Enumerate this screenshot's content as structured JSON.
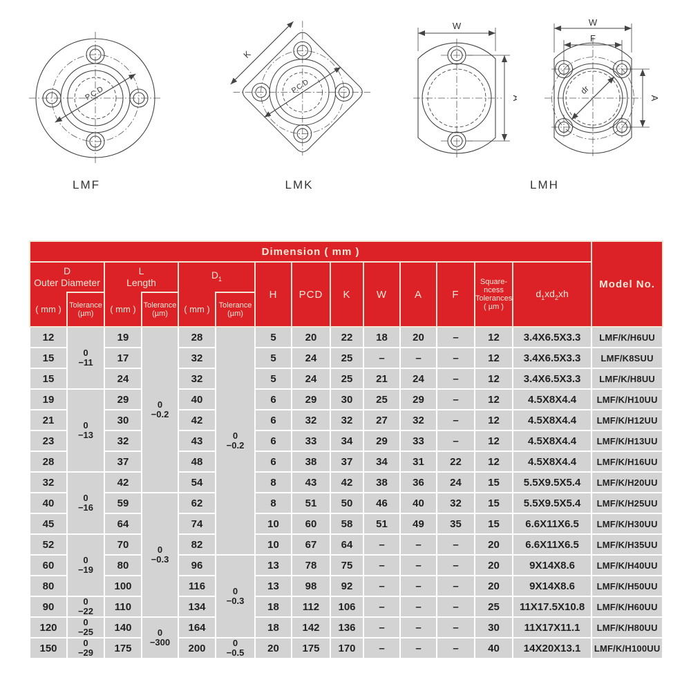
{
  "colors": {
    "header_red": "#dc2127",
    "header_text": "#f6ead8",
    "row_gray": "#d3d3d3",
    "grid_white": "#ffffff",
    "body_text": "#222222",
    "drawing_line": "#444444"
  },
  "diagrams": {
    "lmf": {
      "label": "LMF",
      "pcd_label": "P.C.D"
    },
    "lmk": {
      "label": "LMK",
      "pcd_label": "P.C.D",
      "k_label": "K"
    },
    "lmh": {
      "label": "LMH",
      "left": {
        "w": "W",
        "a": "A"
      },
      "right": {
        "w": "W",
        "f": "F",
        "a": "A",
        "dr": "dr"
      }
    }
  },
  "table": {
    "title": "Dimension ( mm )",
    "model_header": "Model No.",
    "header": {
      "d": {
        "line1": "D",
        "line2": "Outer Diameter",
        "unit": "( mm )",
        "tol1": "Tolerance",
        "tol2": "(µm)"
      },
      "l": {
        "line1": "L",
        "line2": "Length",
        "unit": "( mm )",
        "tol1": "Tolerance",
        "tol2": "(µm)"
      },
      "d1": {
        "base": "D",
        "sub": "1",
        "unit": "( mm )",
        "tol1": "Tolerance",
        "tol2": "(µm)"
      },
      "h": "H",
      "pcd": "PCD",
      "k": "K",
      "w": "W",
      "a": "A",
      "f": "F",
      "squareness": [
        "Square-",
        "ncess",
        "Tolerances",
        "( µm )"
      ],
      "dxh": {
        "p1": "d",
        "s1": "1",
        "p2": "xd",
        "s2": "2",
        "p3": "xh"
      }
    },
    "d_tolerance_groups": [
      {
        "start": 0,
        "span": 3,
        "line1": "0",
        "line2": "−11"
      },
      {
        "start": 3,
        "span": 4,
        "line1": "0",
        "line2": "−13"
      },
      {
        "start": 7,
        "span": 3,
        "line1": "0",
        "line2": "−16"
      },
      {
        "start": 10,
        "span": 3,
        "line1": "0",
        "line2": "−19"
      },
      {
        "start": 13,
        "span": 1,
        "line1": "0",
        "line2": "−22"
      },
      {
        "start": 14,
        "span": 1,
        "line1": "0",
        "line2": "−25"
      },
      {
        "start": 15,
        "span": 1,
        "line1": "0",
        "line2": "−29"
      }
    ],
    "l_tolerance_groups": [
      {
        "start": 0,
        "span": 8,
        "line1": "0",
        "line2": "−0.2"
      },
      {
        "start": 8,
        "span": 6,
        "line1": "0",
        "line2": "−0.3"
      },
      {
        "start": 14,
        "span": 2,
        "line1": "0",
        "line2": "−300"
      }
    ],
    "d1_tolerance_groups": [
      {
        "start": 0,
        "span": 11,
        "line1": "0",
        "line2": "−0.2"
      },
      {
        "start": 11,
        "span": 4,
        "line1": "0",
        "line2": "−0.3"
      },
      {
        "start": 15,
        "span": 1,
        "line1": "0",
        "line2": "−0.5"
      }
    ],
    "rows": [
      {
        "d": "12",
        "l": "19",
        "d1": "28",
        "h": "5",
        "pcd": "20",
        "k": "22",
        "w": "18",
        "a": "20",
        "f": "–",
        "sq": "12",
        "dxh": "3.4X6.5X3.3",
        "model": "LMF/K/H6UU"
      },
      {
        "d": "15",
        "l": "17",
        "d1": "32",
        "h": "5",
        "pcd": "24",
        "k": "25",
        "w": "–",
        "a": "–",
        "f": "–",
        "sq": "12",
        "dxh": "3.4X6.5X3.3",
        "model": "LMF/K8SUU"
      },
      {
        "d": "15",
        "l": "24",
        "d1": "32",
        "h": "5",
        "pcd": "24",
        "k": "25",
        "w": "21",
        "a": "24",
        "f": "–",
        "sq": "12",
        "dxh": "3.4X6.5X3.3",
        "model": "LMF/K/H8UU"
      },
      {
        "d": "19",
        "l": "29",
        "d1": "40",
        "h": "6",
        "pcd": "29",
        "k": "30",
        "w": "25",
        "a": "29",
        "f": "–",
        "sq": "12",
        "dxh": "4.5X8X4.4",
        "model": "LMF/K/H10UU"
      },
      {
        "d": "21",
        "l": "30",
        "d1": "42",
        "h": "6",
        "pcd": "32",
        "k": "32",
        "w": "27",
        "a": "32",
        "f": "–",
        "sq": "12",
        "dxh": "4.5X8X4.4",
        "model": "LMF/K/H12UU"
      },
      {
        "d": "23",
        "l": "32",
        "d1": "43",
        "h": "6",
        "pcd": "33",
        "k": "34",
        "w": "29",
        "a": "33",
        "f": "–",
        "sq": "12",
        "dxh": "4.5X8X4.4",
        "model": "LMF/K/H13UU"
      },
      {
        "d": "28",
        "l": "37",
        "d1": "48",
        "h": "6",
        "pcd": "38",
        "k": "37",
        "w": "34",
        "a": "31",
        "f": "22",
        "sq": "12",
        "dxh": "4.5X8X4.4",
        "model": "LMF/K/H16UU"
      },
      {
        "d": "32",
        "l": "42",
        "d1": "54",
        "h": "8",
        "pcd": "43",
        "k": "42",
        "w": "38",
        "a": "36",
        "f": "24",
        "sq": "15",
        "dxh": "5.5X9.5X5.4",
        "model": "LMF/K/H20UU"
      },
      {
        "d": "40",
        "l": "59",
        "d1": "62",
        "h": "8",
        "pcd": "51",
        "k": "50",
        "w": "46",
        "a": "40",
        "f": "32",
        "sq": "15",
        "dxh": "5.5X9.5X5.4",
        "model": "LMF/K/H25UU"
      },
      {
        "d": "45",
        "l": "64",
        "d1": "74",
        "h": "10",
        "pcd": "60",
        "k": "58",
        "w": "51",
        "a": "49",
        "f": "35",
        "sq": "15",
        "dxh": "6.6X11X6.5",
        "model": "LMF/K/H30UU"
      },
      {
        "d": "52",
        "l": "70",
        "d1": "82",
        "h": "10",
        "pcd": "67",
        "k": "64",
        "w": "–",
        "a": "–",
        "f": "–",
        "sq": "20",
        "dxh": "6.6X11X6.5",
        "model": "LMF/K/H35UU"
      },
      {
        "d": "60",
        "l": "80",
        "d1": "96",
        "h": "13",
        "pcd": "78",
        "k": "75",
        "w": "–",
        "a": "–",
        "f": "–",
        "sq": "20",
        "dxh": "9X14X8.6",
        "model": "LMF/K/H40UU"
      },
      {
        "d": "80",
        "l": "100",
        "d1": "116",
        "h": "13",
        "pcd": "98",
        "k": "92",
        "w": "–",
        "a": "–",
        "f": "–",
        "sq": "20",
        "dxh": "9X14X8.6",
        "model": "LMF/K/H50UU"
      },
      {
        "d": "90",
        "l": "110",
        "d1": "134",
        "h": "18",
        "pcd": "112",
        "k": "106",
        "w": "–",
        "a": "–",
        "f": "–",
        "sq": "25",
        "dxh": "11X17.5X10.8",
        "model": "LMF/K/H60UU"
      },
      {
        "d": "120",
        "l": "140",
        "d1": "164",
        "h": "18",
        "pcd": "142",
        "k": "136",
        "w": "–",
        "a": "–",
        "f": "–",
        "sq": "30",
        "dxh": "11X17X11.1",
        "model": "LMF/K/H80UU"
      },
      {
        "d": "150",
        "l": "175",
        "d1": "200",
        "h": "20",
        "pcd": "175",
        "k": "170",
        "w": "–",
        "a": "–",
        "f": "–",
        "sq": "40",
        "dxh": "14X20X13.1",
        "model": "LMF/K/H100UU"
      }
    ]
  }
}
